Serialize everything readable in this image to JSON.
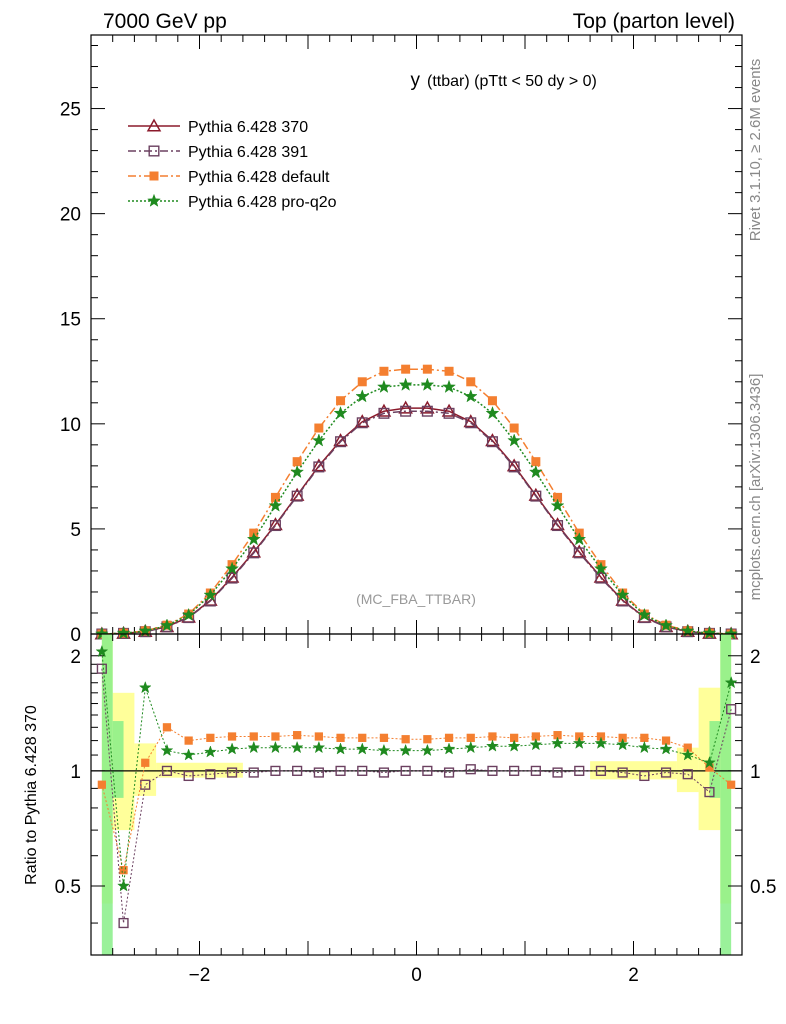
{
  "header": {
    "left": "7000 GeV pp",
    "right": "Top (parton level)"
  },
  "side_labels": {
    "rivet": "Rivet 3.1.10, ≥ 2.6M events",
    "mcplots": "mcplots.cern.ch [arXiv:1306.3436]"
  },
  "chart_data": [
    {
      "type": "line",
      "title": "y",
      "title_suffix": "(ttbar) (pTtt < 50 dy > 0)",
      "watermark": "(MC_FBA_TTBAR)",
      "xlabel": "",
      "ylabel": "",
      "xlim": [
        -3.0,
        3.0
      ],
      "ylim": [
        0,
        28.5
      ],
      "xticks": [
        -2,
        0,
        2
      ],
      "yticks": [
        0,
        5,
        10,
        15,
        20,
        25
      ],
      "legend_position": "top-left",
      "series": [
        {
          "name": "Pythia 6.428 370",
          "color": "#8b1a2b",
          "marker": "triangle-open",
          "line": "solid",
          "x": [
            -2.9,
            -2.7,
            -2.5,
            -2.3,
            -2.1,
            -1.9,
            -1.7,
            -1.5,
            -1.3,
            -1.1,
            -0.9,
            -0.7,
            -0.5,
            -0.3,
            -0.1,
            0.1,
            0.3,
            0.5,
            0.7,
            0.9,
            1.1,
            1.3,
            1.5,
            1.7,
            1.9,
            2.1,
            2.3,
            2.5,
            2.7,
            2.9
          ],
          "y": [
            0.0,
            0.03,
            0.12,
            0.35,
            0.8,
            1.6,
            2.7,
            3.9,
            5.2,
            6.6,
            8.0,
            9.2,
            10.1,
            10.6,
            10.75,
            10.75,
            10.6,
            10.1,
            9.2,
            8.0,
            6.6,
            5.2,
            3.9,
            2.7,
            1.6,
            0.8,
            0.35,
            0.12,
            0.03,
            0.0
          ]
        },
        {
          "name": "Pythia 6.428 391",
          "color": "#6b4060",
          "marker": "square-open",
          "line": "dashdot",
          "x": [
            -2.9,
            -2.7,
            -2.5,
            -2.3,
            -2.1,
            -1.9,
            -1.7,
            -1.5,
            -1.3,
            -1.1,
            -0.9,
            -0.7,
            -0.5,
            -0.3,
            -0.1,
            0.1,
            0.3,
            0.5,
            0.7,
            0.9,
            1.1,
            1.3,
            1.5,
            1.7,
            1.9,
            2.1,
            2.3,
            2.5,
            2.7,
            2.9
          ],
          "y": [
            0.0,
            0.03,
            0.11,
            0.34,
            0.78,
            1.57,
            2.66,
            3.86,
            5.16,
            6.56,
            7.95,
            9.15,
            10.05,
            10.5,
            10.6,
            10.6,
            10.5,
            10.05,
            9.15,
            7.95,
            6.56,
            5.16,
            3.86,
            2.66,
            1.57,
            0.78,
            0.34,
            0.11,
            0.03,
            0.0
          ]
        },
        {
          "name": "Pythia 6.428 default",
          "color": "#f47f30",
          "marker": "square-filled",
          "line": "dashdot",
          "x": [
            -2.9,
            -2.7,
            -2.5,
            -2.3,
            -2.1,
            -1.9,
            -1.7,
            -1.5,
            -1.3,
            -1.1,
            -0.9,
            -0.7,
            -0.5,
            -0.3,
            -0.1,
            0.1,
            0.3,
            0.5,
            0.7,
            0.9,
            1.1,
            1.3,
            1.5,
            1.7,
            1.9,
            2.1,
            2.3,
            2.5,
            2.7,
            2.9
          ],
          "y": [
            0.0,
            0.04,
            0.15,
            0.42,
            0.95,
            1.95,
            3.3,
            4.8,
            6.5,
            8.2,
            9.8,
            11.1,
            12.0,
            12.5,
            12.6,
            12.6,
            12.5,
            12.0,
            11.1,
            9.8,
            8.2,
            6.5,
            4.8,
            3.3,
            1.95,
            0.95,
            0.42,
            0.15,
            0.04,
            0.0
          ]
        },
        {
          "name": "Pythia 6.428 pro-q2o",
          "color": "#1f8a1f",
          "marker": "star",
          "line": "dotted",
          "x": [
            -2.9,
            -2.7,
            -2.5,
            -2.3,
            -2.1,
            -1.9,
            -1.7,
            -1.5,
            -1.3,
            -1.1,
            -0.9,
            -0.7,
            -0.5,
            -0.3,
            -0.1,
            0.1,
            0.3,
            0.5,
            0.7,
            0.9,
            1.1,
            1.3,
            1.5,
            1.7,
            1.9,
            2.1,
            2.3,
            2.5,
            2.7,
            2.9
          ],
          "y": [
            0.0,
            0.04,
            0.14,
            0.4,
            0.9,
            1.85,
            3.1,
            4.5,
            6.1,
            7.7,
            9.2,
            10.5,
            11.3,
            11.75,
            11.85,
            11.85,
            11.75,
            11.3,
            10.5,
            9.2,
            7.7,
            6.1,
            4.5,
            3.1,
            1.85,
            0.9,
            0.4,
            0.14,
            0.04,
            0.0
          ]
        }
      ]
    },
    {
      "type": "line",
      "title": "",
      "xlabel": "",
      "ylabel": "Ratio to Pythia 6.428 370",
      "xlim": [
        -3.0,
        3.0
      ],
      "ylim": [
        0.33,
        2.28
      ],
      "xticks": [
        -2,
        0,
        2
      ],
      "yticks": [
        0.5,
        1,
        2
      ],
      "series": [
        {
          "name": "Pythia 6.428 391",
          "color": "#6b4060",
          "marker": "square-open",
          "x": [
            -2.9,
            -2.7,
            -2.5,
            -2.3,
            -2.1,
            -1.9,
            -1.7,
            -1.5,
            -1.3,
            -1.1,
            -0.9,
            -0.7,
            -0.5,
            -0.3,
            -0.1,
            0.1,
            0.3,
            0.5,
            0.7,
            0.9,
            1.1,
            1.3,
            1.5,
            1.7,
            1.9,
            2.1,
            2.3,
            2.5,
            2.7,
            2.9
          ],
          "y": [
            1.85,
            0.4,
            0.92,
            1.0,
            0.97,
            0.98,
            0.99,
            0.99,
            1.0,
            1.0,
            0.99,
            1.0,
            1.0,
            0.99,
            1.0,
            1.0,
            0.99,
            1.01,
            1.0,
            1.0,
            1.0,
            0.99,
            1.0,
            1.0,
            0.99,
            0.97,
            0.99,
            0.98,
            0.88,
            1.45
          ]
        },
        {
          "name": "Pythia 6.428 default",
          "color": "#f47f30",
          "marker": "square-filled",
          "x": [
            -2.9,
            -2.7,
            -2.5,
            -2.3,
            -2.1,
            -1.9,
            -1.7,
            -1.5,
            -1.3,
            -1.1,
            -0.9,
            -0.7,
            -0.5,
            -0.3,
            -0.1,
            0.1,
            0.3,
            0.5,
            0.7,
            0.9,
            1.1,
            1.3,
            1.5,
            1.7,
            1.9,
            2.1,
            2.3,
            2.5,
            2.7,
            2.9
          ],
          "y": [
            0.92,
            0.55,
            1.05,
            1.3,
            1.2,
            1.22,
            1.23,
            1.23,
            1.23,
            1.24,
            1.23,
            1.22,
            1.22,
            1.22,
            1.21,
            1.21,
            1.22,
            1.22,
            1.23,
            1.22,
            1.23,
            1.24,
            1.23,
            1.23,
            1.22,
            1.22,
            1.2,
            1.15,
            1.02,
            0.92
          ]
        },
        {
          "name": "Pythia 6.428 pro-q2o",
          "color": "#1f8a1f",
          "marker": "star",
          "x": [
            -2.9,
            -2.7,
            -2.5,
            -2.3,
            -2.1,
            -1.9,
            -1.7,
            -1.5,
            -1.3,
            -1.1,
            -0.9,
            -0.7,
            -0.5,
            -0.3,
            -0.1,
            0.1,
            0.3,
            0.5,
            0.7,
            0.9,
            1.1,
            1.3,
            1.5,
            1.7,
            1.9,
            2.1,
            2.3,
            2.5,
            2.7,
            2.9
          ],
          "y": [
            2.05,
            0.5,
            1.65,
            1.13,
            1.1,
            1.12,
            1.14,
            1.15,
            1.15,
            1.15,
            1.15,
            1.14,
            1.14,
            1.13,
            1.13,
            1.13,
            1.14,
            1.15,
            1.16,
            1.16,
            1.17,
            1.18,
            1.18,
            1.18,
            1.17,
            1.15,
            1.14,
            1.1,
            1.05,
            1.7
          ]
        }
      ]
    }
  ]
}
